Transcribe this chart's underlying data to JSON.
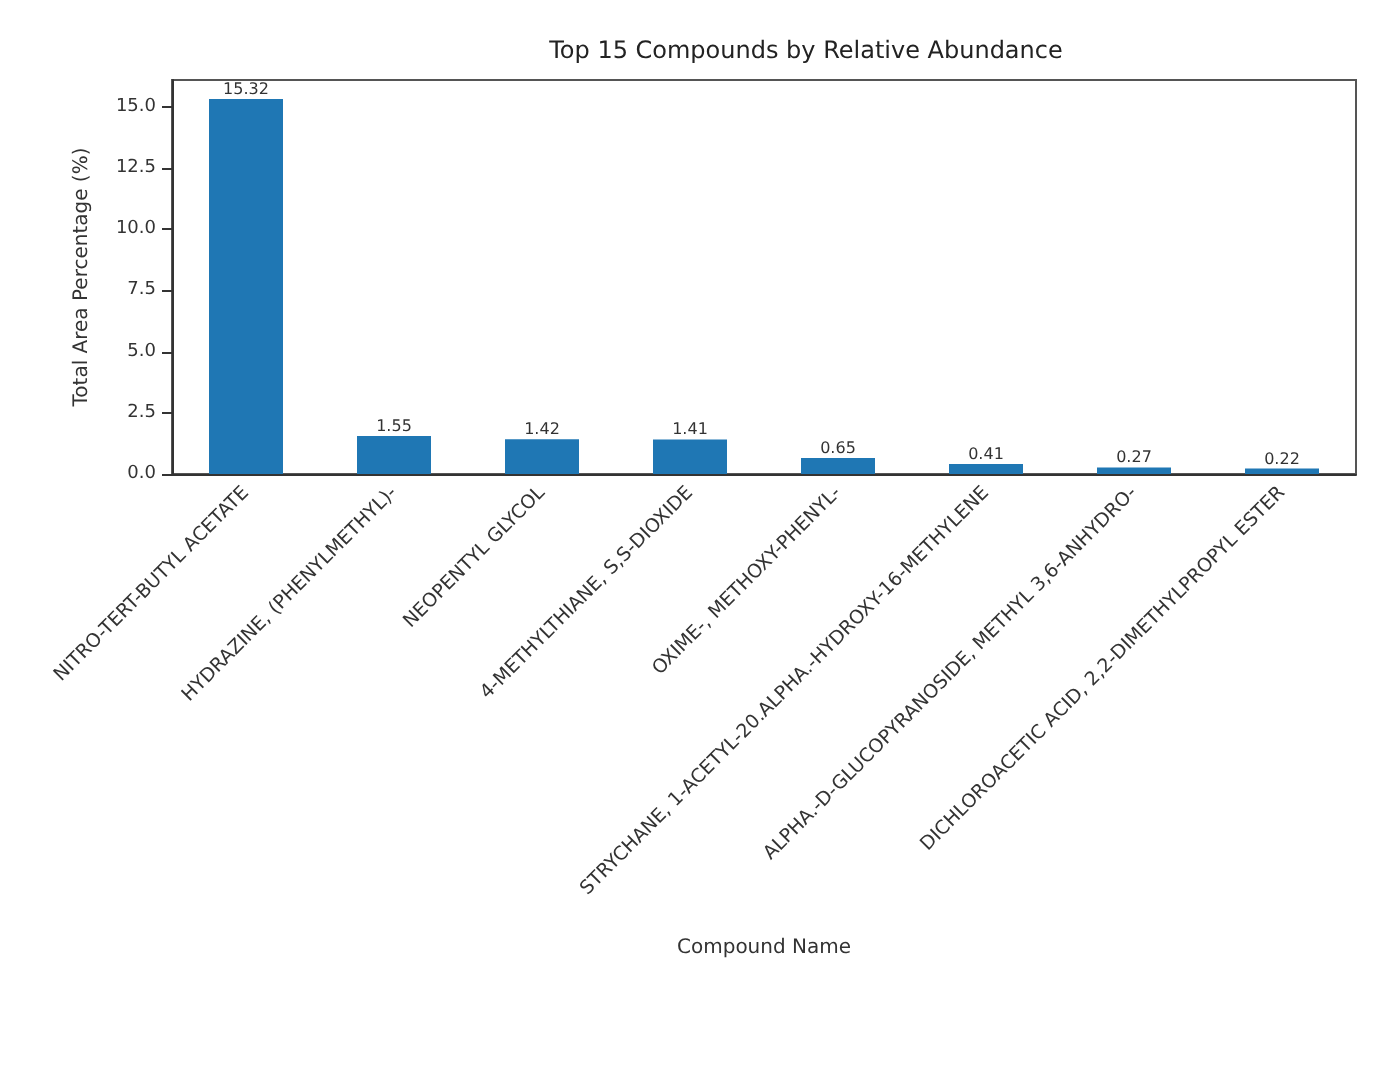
{
  "chart_data": {
    "type": "bar",
    "title": "Top 15 Compounds by Relative Abundance",
    "xlabel": "Compound Name",
    "ylabel": "Total Area Percentage (%)",
    "categories": [
      "NITRO-TERT-BUTYL ACETATE",
      "HYDRAZINE, (PHENYLMETHYL)-",
      "NEOPENTYL GLYCOL",
      "4-METHYLTHIANE, S,S-DIOXIDE",
      "OXIME-, METHOXY-PHENYL-",
      "STRYCHANE, 1-ACETYL-20.ALPHA.-HYDROXY-16-METHYLENE",
      "ALPHA.-D-GLUCOPYRANOSIDE, METHYL 3,6-ANHYDRO-",
      "DICHLOROACETIC ACID, 2,2-DIMETHYLPROPYL ESTER"
    ],
    "values": [
      15.32,
      1.55,
      1.42,
      1.41,
      0.65,
      0.41,
      0.27,
      0.22
    ],
    "color": "#1f77b4",
    "ylim": [
      0,
      16.1
    ],
    "yticks": [
      {
        "value": 0,
        "label": "0.0"
      },
      {
        "value": 2.5,
        "label": "2.5"
      },
      {
        "value": 5,
        "label": "5.0"
      },
      {
        "value": 7.5,
        "label": "7.5"
      },
      {
        "value": 10,
        "label": "10.0"
      },
      {
        "value": 12.5,
        "label": "12.5"
      },
      {
        "value": 15,
        "label": "15.0"
      }
    ],
    "data_labels": true,
    "grid": false
  }
}
